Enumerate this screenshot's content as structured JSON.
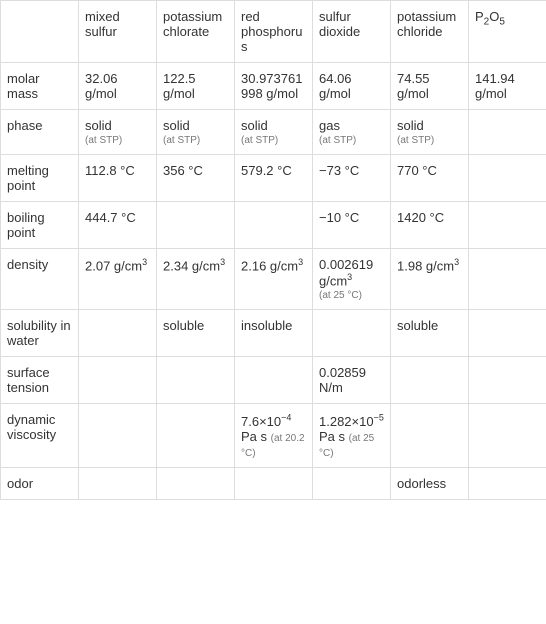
{
  "columns": [
    "",
    "mixed sulfur",
    "potassium chlorate",
    "red phosphorus",
    "sulfur dioxide",
    "potassium chloride",
    "P2O5"
  ],
  "rows": [
    {
      "label": "molar mass",
      "cells": [
        "32.06 g/mol",
        "122.5 g/mol",
        "30.973761998 g/mol",
        "64.06 g/mol",
        "74.55 g/mol",
        "141.94 g/mol"
      ]
    },
    {
      "label": "phase",
      "cells": [
        {
          "main": "solid",
          "sub": "(at STP)"
        },
        {
          "main": "solid",
          "sub": "(at STP)"
        },
        {
          "main": "solid",
          "sub": "(at STP)"
        },
        {
          "main": "gas",
          "sub": "(at STP)"
        },
        {
          "main": "solid",
          "sub": "(at STP)"
        },
        ""
      ]
    },
    {
      "label": "melting point",
      "cells": [
        "112.8 °C",
        "356 °C",
        "579.2 °C",
        "−73 °C",
        "770 °C",
        ""
      ]
    },
    {
      "label": "boiling point",
      "cells": [
        "444.7 °C",
        "",
        "",
        "−10 °C",
        "1420 °C",
        ""
      ]
    },
    {
      "label": "density",
      "cells": [
        {
          "main": "2.07 g/cm",
          "sup": "3"
        },
        {
          "main": "2.34 g/cm",
          "sup": "3"
        },
        {
          "main": "2.16 g/cm",
          "sup": "3"
        },
        {
          "main": "0.002619 g/cm",
          "sup": "3",
          "sub": "(at 25 °C)"
        },
        {
          "main": "1.98 g/cm",
          "sup": "3"
        },
        ""
      ]
    },
    {
      "label": "solubility in water",
      "cells": [
        "",
        "soluble",
        "insoluble",
        "",
        "soluble",
        ""
      ]
    },
    {
      "label": "surface tension",
      "cells": [
        "",
        "",
        "",
        "0.02859 N/m",
        "",
        ""
      ]
    },
    {
      "label": "dynamic viscosity",
      "cells": [
        "",
        "",
        {
          "exp_base": "7.6×10",
          "exp": "−4",
          "unit": " Pa s",
          "sub": "(at 20.2 °C)"
        },
        {
          "exp_base": "1.282×10",
          "exp": "−5",
          "unit": " Pa s",
          "sub": "(at 25 °C)"
        },
        "",
        ""
      ]
    },
    {
      "label": "odor",
      "cells": [
        "",
        "",
        "",
        "",
        "odorless",
        ""
      ]
    }
  ],
  "style": {
    "font_size": 13,
    "sub_font_size": 10,
    "border_color": "#dddddd",
    "text_color": "#333333",
    "sub_color": "#777777",
    "background": "#ffffff"
  }
}
